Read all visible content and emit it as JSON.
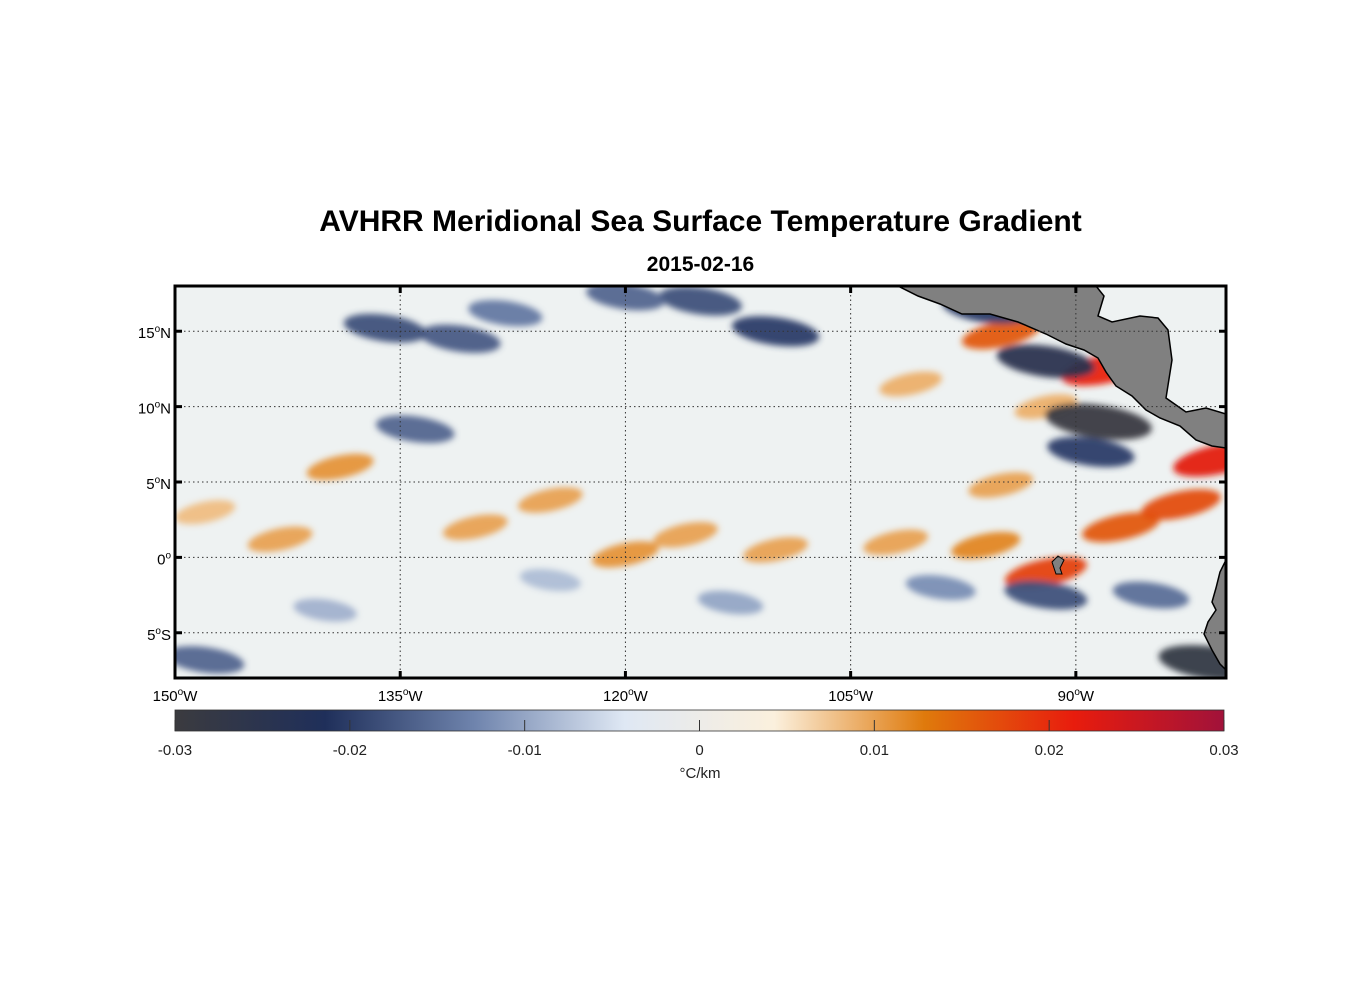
{
  "figure": {
    "title": "AVHRR Meridional Sea Surface Temperature Gradient",
    "subtitle": "2015-02-16"
  },
  "map": {
    "lon_range": [
      -150,
      -80
    ],
    "lat_range": [
      -8,
      18
    ],
    "x_ticks": [
      {
        "lon": -150,
        "deg": "150",
        "hemi": "W"
      },
      {
        "lon": -135,
        "deg": "135",
        "hemi": "W"
      },
      {
        "lon": -120,
        "deg": "120",
        "hemi": "W"
      },
      {
        "lon": -105,
        "deg": "105",
        "hemi": "W"
      },
      {
        "lon": -90,
        "deg": "90",
        "hemi": "W"
      }
    ],
    "y_ticks": [
      {
        "lat": 15,
        "deg": "15",
        "hemi": "N"
      },
      {
        "lat": 10,
        "deg": "10",
        "hemi": "N"
      },
      {
        "lat": 5,
        "deg": "5",
        "hemi": "N"
      },
      {
        "lat": 0,
        "deg": "0",
        "hemi": ""
      },
      {
        "lat": -5,
        "deg": "5",
        "hemi": "S"
      }
    ],
    "gridlines": true,
    "land_color": "#808080"
  },
  "colorbar": {
    "range": [
      -0.03,
      0.03
    ],
    "tick_values": [
      -0.03,
      -0.02,
      -0.01,
      0,
      0.01,
      0.02,
      0.03
    ],
    "tick_labels": [
      "-0.03",
      "-0.02",
      "-0.01",
      "0",
      "0.01",
      "0.02",
      "0.03"
    ],
    "units": "°C/km",
    "colors": [
      "#3b3b3f",
      "#1f2f5a",
      "#6f84ad",
      "#dfe8f4",
      "#fbf0dd",
      "#df7a0c",
      "#e81c0d",
      "#a1123a"
    ]
  },
  "chart_data": {
    "type": "heatmap",
    "title": "AVHRR Meridional Sea Surface Temperature Gradient",
    "subtitle": "2015-02-16",
    "xlabel": "",
    "ylabel": "",
    "xlim": [
      -150,
      -80
    ],
    "ylim": [
      -8,
      18
    ],
    "colorbar_label": "°C/km",
    "color_range": [
      -0.03,
      0.03
    ],
    "features": [
      {
        "lon": -139,
        "lat": 6.0,
        "value": 0.011
      },
      {
        "lon": -143,
        "lat": 1.2,
        "value": 0.01
      },
      {
        "lon": -148,
        "lat": 3.0,
        "value": 0.008
      },
      {
        "lon": -130,
        "lat": 2.0,
        "value": 0.01
      },
      {
        "lon": -125,
        "lat": 3.8,
        "value": 0.01
      },
      {
        "lon": -120,
        "lat": 0.2,
        "value": 0.011
      },
      {
        "lon": -116,
        "lat": 1.5,
        "value": 0.01
      },
      {
        "lon": -110,
        "lat": 0.5,
        "value": 0.01
      },
      {
        "lon": -102,
        "lat": 1.0,
        "value": 0.01
      },
      {
        "lon": -96,
        "lat": 0.8,
        "value": 0.012
      },
      {
        "lon": -92,
        "lat": -1.0,
        "value": 0.018
      },
      {
        "lon": -87,
        "lat": 2.0,
        "value": 0.016
      },
      {
        "lon": -83,
        "lat": 3.5,
        "value": 0.017
      },
      {
        "lon": -80.5,
        "lat": 6.5,
        "value": 0.022
      },
      {
        "lon": -88,
        "lat": 12.5,
        "value": 0.021
      },
      {
        "lon": -95,
        "lat": 14.8,
        "value": 0.016
      },
      {
        "lon": -101,
        "lat": 11.5,
        "value": 0.009
      },
      {
        "lon": -92,
        "lat": 10.0,
        "value": 0.009
      },
      {
        "lon": -95,
        "lat": 4.8,
        "value": 0.01
      },
      {
        "lon": -88.5,
        "lat": 9.0,
        "value": -0.029
      },
      {
        "lon": -92,
        "lat": 13.0,
        "value": -0.025
      },
      {
        "lon": -89,
        "lat": 7.0,
        "value": -0.02
      },
      {
        "lon": -96,
        "lat": 16.5,
        "value": -0.02
      },
      {
        "lon": -110,
        "lat": 15.0,
        "value": -0.02
      },
      {
        "lon": -115,
        "lat": 17.0,
        "value": -0.018
      },
      {
        "lon": -120,
        "lat": 17.3,
        "value": -0.016
      },
      {
        "lon": -131,
        "lat": 14.5,
        "value": -0.017
      },
      {
        "lon": -136,
        "lat": 15.2,
        "value": -0.018
      },
      {
        "lon": -128,
        "lat": 16.2,
        "value": -0.014
      },
      {
        "lon": -134,
        "lat": 8.5,
        "value": -0.016
      },
      {
        "lon": -148,
        "lat": -6.8,
        "value": -0.016
      },
      {
        "lon": -92,
        "lat": -2.5,
        "value": -0.018
      },
      {
        "lon": -85,
        "lat": -2.5,
        "value": -0.015
      },
      {
        "lon": -81,
        "lat": -7.0,
        "value": -0.028
      },
      {
        "lon": -99,
        "lat": -2.0,
        "value": -0.012
      },
      {
        "lon": -113,
        "lat": -3.0,
        "value": -0.01
      },
      {
        "lon": -140,
        "lat": -3.5,
        "value": -0.009
      },
      {
        "lon": -125,
        "lat": -1.5,
        "value": -0.008
      }
    ]
  }
}
